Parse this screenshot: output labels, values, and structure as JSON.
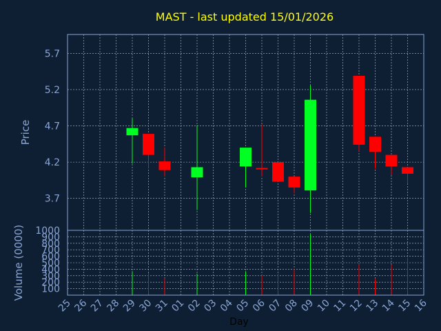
{
  "chart_data": {
    "type": "candlestick",
    "title": "MAST - last updated 15/01/2026",
    "colors": {
      "background": "#0f1f33",
      "axis": "#8aa6d6",
      "grid": "#b8c4d8",
      "title": "#ffff00",
      "label": "#8aa6d6",
      "xlabel": "#000000",
      "up": "#00ff22",
      "down": "#ff0000"
    },
    "x": {
      "label": "Day",
      "ticks": [
        "25",
        "26",
        "27",
        "28",
        "29",
        "30",
        "31",
        "01",
        "02",
        "03",
        "04",
        "05",
        "06",
        "07",
        "08",
        "09",
        "10",
        "11",
        "12",
        "13",
        "14",
        "15",
        "16"
      ]
    },
    "price": {
      "ylabel": "Price",
      "ylim": [
        3.26,
        5.96
      ],
      "ticks": [
        "3.7",
        "4.2",
        "4.7",
        "5.2",
        "5.7"
      ]
    },
    "volume": {
      "ylabel": "Volume (0000)",
      "ylim": [
        0,
        1000
      ],
      "ticks": [
        "100",
        "200",
        "300",
        "400",
        "500",
        "600",
        "700",
        "800",
        "900",
        "1000"
      ]
    },
    "candles": [
      {
        "day": "29",
        "open": 4.57,
        "high": 4.8,
        "low": 4.18,
        "close": 4.67,
        "volume": 370
      },
      {
        "day": "30",
        "open": 4.59,
        "high": 4.59,
        "low": 4.12,
        "close": 4.3,
        "volume": 340
      },
      {
        "day": "31",
        "open": 4.21,
        "high": 4.4,
        "low": 4.0,
        "close": 4.09,
        "volume": 260
      },
      {
        "day": "02",
        "open": 3.99,
        "high": 4.71,
        "low": 3.54,
        "close": 4.13,
        "volume": 330
      },
      {
        "day": "05",
        "open": 4.14,
        "high": 4.4,
        "low": 3.85,
        "close": 4.4,
        "volume": 370
      },
      {
        "day": "06",
        "open": 4.12,
        "high": 4.72,
        "low": 4.0,
        "close": 4.1,
        "volume": 310
      },
      {
        "day": "07",
        "open": 4.2,
        "high": 4.2,
        "low": 3.93,
        "close": 3.93,
        "volume": 330
      },
      {
        "day": "08",
        "open": 4.0,
        "high": 4.0,
        "low": 3.77,
        "close": 3.85,
        "volume": 400
      },
      {
        "day": "09",
        "open": 3.81,
        "high": 5.26,
        "low": 3.5,
        "close": 5.06,
        "volume": 940
      },
      {
        "day": "12",
        "open": 5.39,
        "high": 5.39,
        "low": 4.35,
        "close": 4.44,
        "volume": 480
      },
      {
        "day": "13",
        "open": 4.55,
        "high": 4.55,
        "low": 4.11,
        "close": 4.34,
        "volume": 250
      },
      {
        "day": "14",
        "open": 4.3,
        "high": 4.3,
        "low": 4.02,
        "close": 4.14,
        "volume": 470
      },
      {
        "day": "15",
        "open": 4.13,
        "high": 4.13,
        "low": 3.9,
        "close": 4.04,
        "volume": 580
      }
    ]
  }
}
